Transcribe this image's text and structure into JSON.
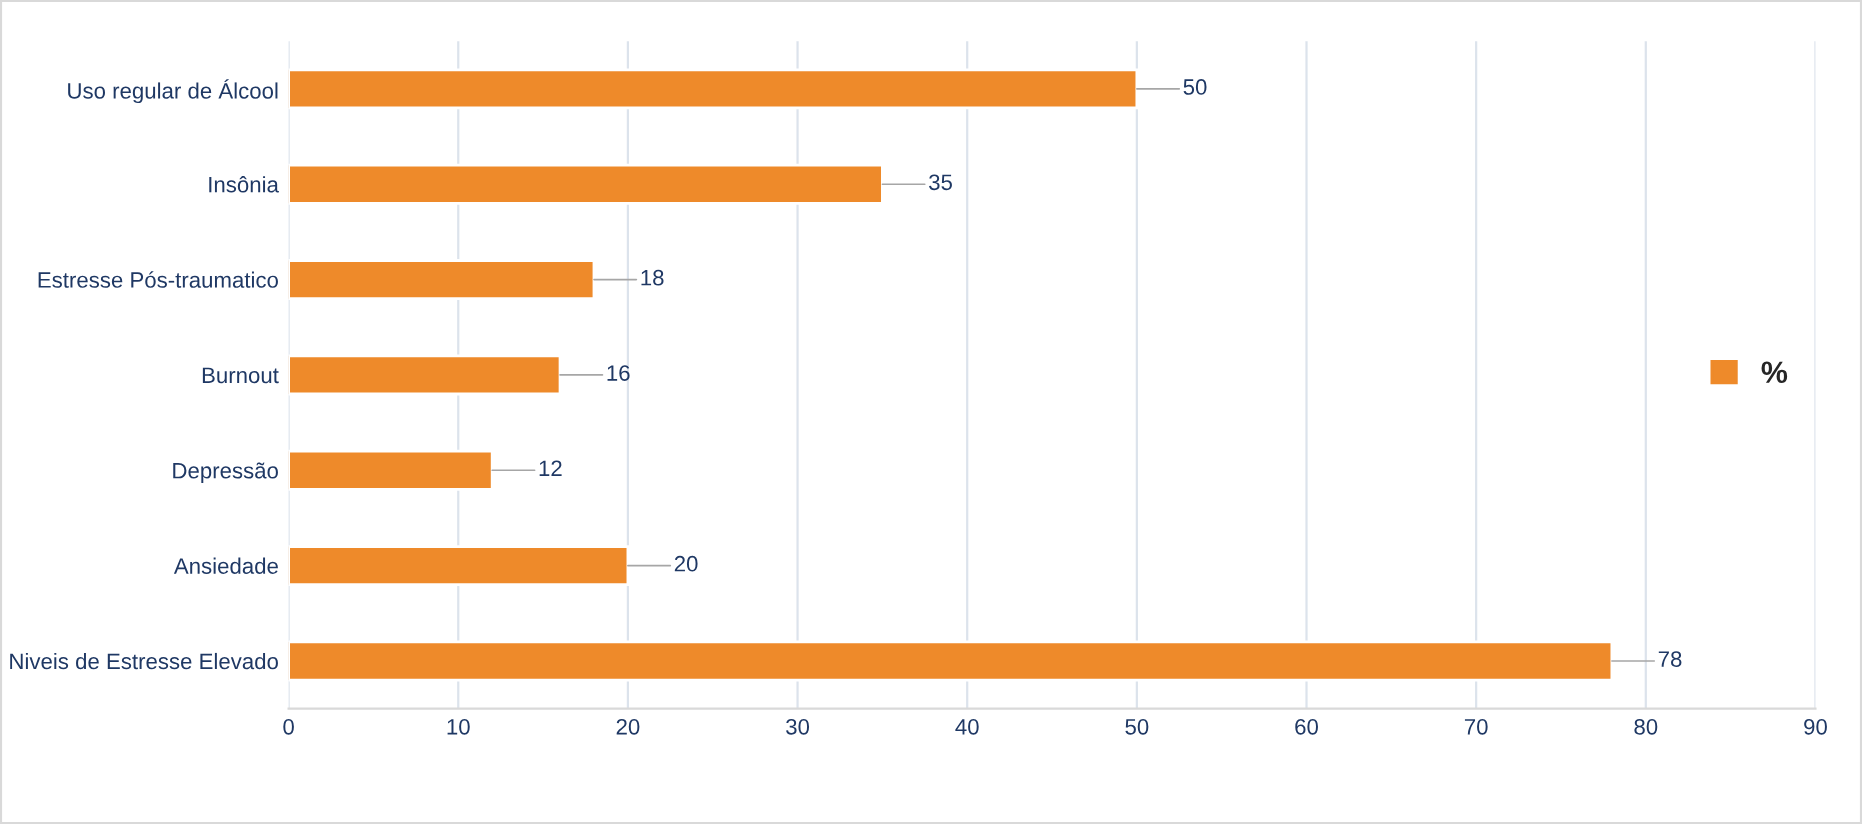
{
  "chart_data": {
    "type": "bar",
    "orientation": "horizontal",
    "categories": [
      "Uso regular de Álcool",
      "Insônia",
      "Estresse Pós-traumatico",
      "Burnout",
      "Depressão",
      "Ansiedade",
      "Niveis de Estresse Elevado"
    ],
    "series": [
      {
        "name": "%",
        "color": "#ee8a2a",
        "values": [
          50,
          35,
          18,
          16,
          12,
          20,
          78
        ]
      }
    ],
    "xlim": [
      0,
      90
    ],
    "xticks": [
      0,
      10,
      20,
      30,
      40,
      50,
      60,
      70,
      80,
      90
    ],
    "grid": "x",
    "legend": "right",
    "data_labels": true
  }
}
